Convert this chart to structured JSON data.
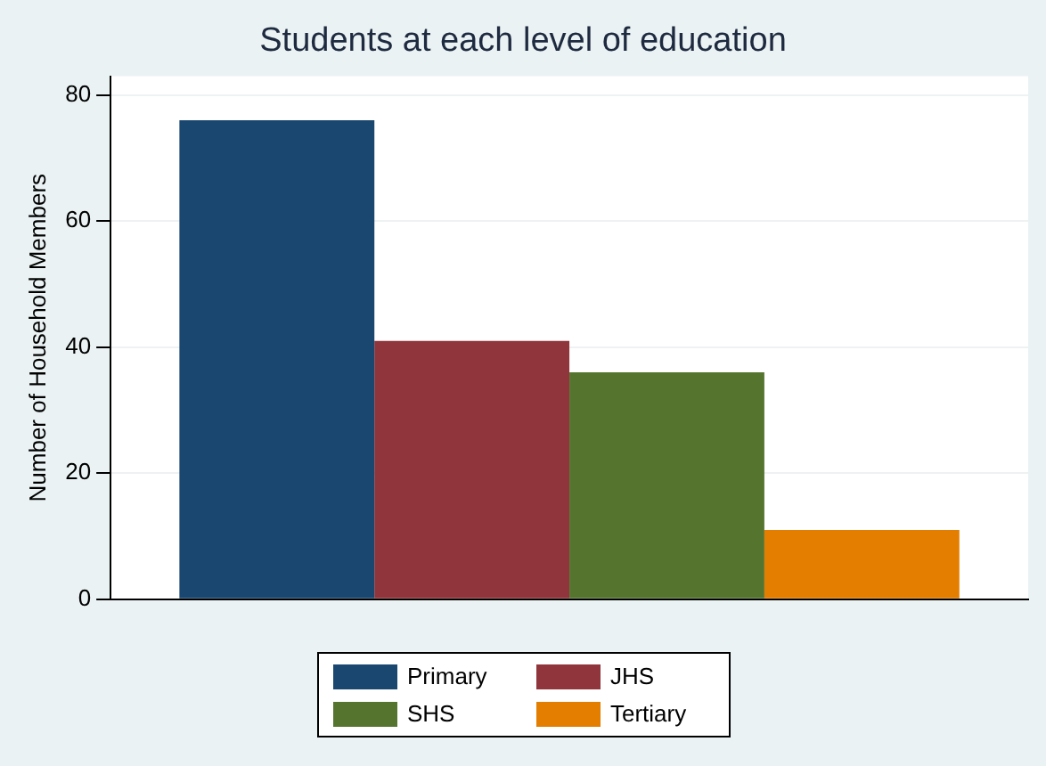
{
  "chart_data": {
    "type": "bar",
    "title": "Students at each level of education",
    "ylabel": "Number of Household Members",
    "categories": [
      null
    ],
    "series": [
      {
        "name": "Primary",
        "color": "#1a476f",
        "values": [
          76
        ]
      },
      {
        "name": "JHS",
        "color": "#90353b",
        "values": [
          41
        ]
      },
      {
        "name": "SHS",
        "color": "#55752f",
        "values": [
          36
        ]
      },
      {
        "name": "Tertiary",
        "color": "#e37e00",
        "values": [
          11
        ]
      }
    ],
    "ylim": [
      0,
      83
    ],
    "yticks": [
      0,
      20,
      40,
      60,
      80
    ],
    "grid": "y",
    "legend": "bottom"
  }
}
